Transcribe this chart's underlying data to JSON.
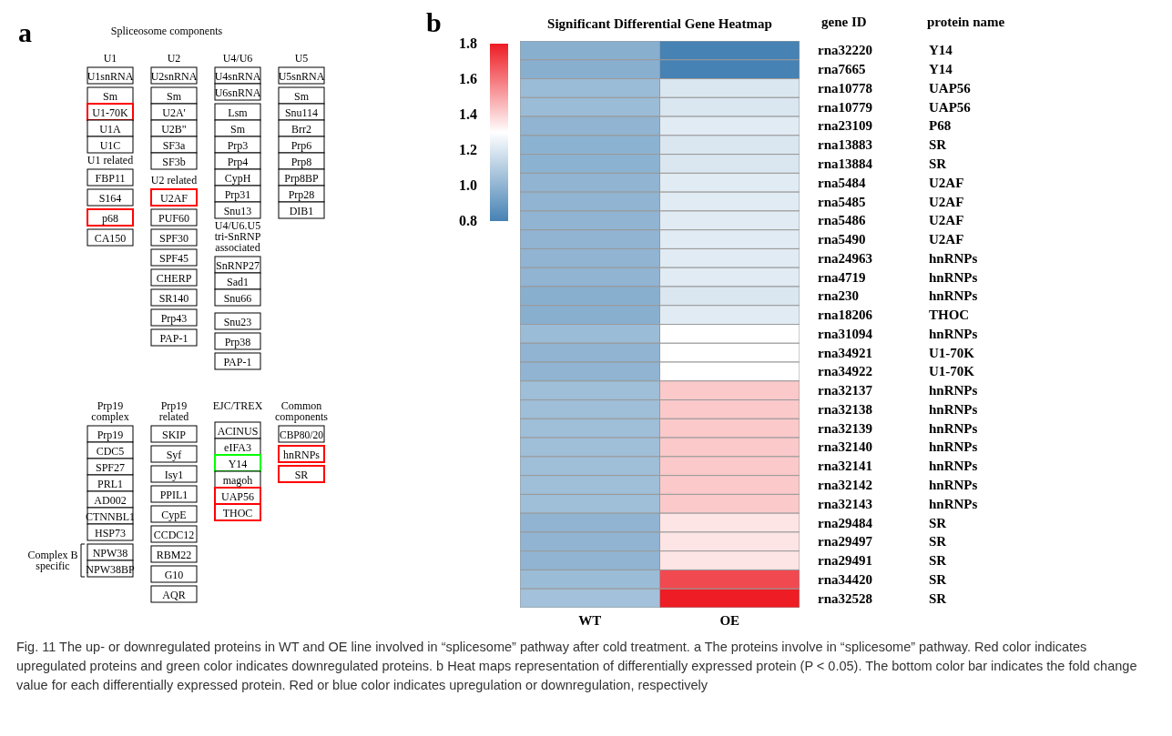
{
  "chart_data": [
    {
      "type": "other",
      "subtitle": "a",
      "title": "Spliceosome components",
      "annotations": [
        "U1",
        "U1snRNA",
        "Sm",
        "U1-70K",
        "U1A",
        "U1C",
        "U1 related",
        "FBP11",
        "S164",
        "p68",
        "CA150",
        "U2",
        "U2snRNA",
        "Sm",
        "U2A'",
        "U2B\"",
        "SF3a",
        "SF3b",
        "U2 related",
        "U2AF",
        "PUF60",
        "SPF30",
        "SPF45",
        "CHERP",
        "SR140",
        "Prp43",
        "PAP-1",
        "U4/U6",
        "U4snRNA",
        "U6snRNA",
        "Lsm",
        "Sm",
        "Prp3",
        "Prp4",
        "CypH",
        "Prp31",
        "Snu13",
        "U4/U6.U5 tri-SnRNP associated",
        "SnRNP27",
        "Sad1",
        "Snu66",
        "Snu23",
        "Prp38",
        "PAP-1",
        "U5",
        "U5snRNA",
        "Sm",
        "Snu114",
        "Brr2",
        "Prp6",
        "Prp8",
        "Prp8BP",
        "Prp28",
        "DIB1",
        "Prp19 complex",
        "Prp19",
        "CDC5",
        "SPF27",
        "PRL1",
        "AD002",
        "CTNNBL1",
        "HSP73",
        "NPW38",
        "NPW38BP",
        "Complex B specific",
        "Prp19 related",
        "SKIP",
        "Syf",
        "Isy1",
        "PPIL1",
        "CypE",
        "CCDC12",
        "RBM22",
        "G10",
        "AQR",
        "EJC/TREX",
        "ACINUS",
        "eIFA3",
        "Y14",
        "magoh",
        "UAP56",
        "THOC",
        "Common components",
        "CBP80/20",
        "hnRNPs",
        "SR"
      ],
      "colors": [
        null,
        "#000000",
        "#000000",
        "#ff0000",
        "#000000",
        "#000000",
        null,
        "#000000",
        "#000000",
        "#ff0000",
        "#000000",
        null,
        "#000000",
        "#000000",
        "#000000",
        "#000000",
        "#000000",
        "#000000",
        null,
        "#ff0000",
        "#000000",
        "#000000",
        "#000000",
        "#000000",
        "#000000",
        "#000000",
        "#000000",
        null,
        "#000000",
        "#000000",
        "#000000",
        "#000000",
        "#000000",
        "#000000",
        "#000000",
        "#000000",
        "#000000",
        null,
        "#000000",
        "#000000",
        "#000000",
        "#000000",
        "#000000",
        "#000000",
        null,
        "#000000",
        "#000000",
        "#000000",
        "#000000",
        "#000000",
        "#000000",
        "#000000",
        "#000000",
        "#000000",
        null,
        "#000000",
        "#000000",
        "#000000",
        "#000000",
        "#000000",
        "#000000",
        "#000000",
        "#000000",
        "#000000",
        null,
        null,
        "#000000",
        "#000000",
        "#000000",
        "#000000",
        "#000000",
        "#000000",
        "#000000",
        "#000000",
        "#000000",
        null,
        "#000000",
        "#000000",
        "#00ff00",
        "#000000",
        "#ff0000",
        "#ff0000",
        null,
        "#000000",
        "#ff0000",
        "#ff0000"
      ]
    },
    {
      "type": "heatmap",
      "subtitle": "b",
      "title": "Significant Differential Gene Heatmap",
      "ylabel": "gene ID",
      "y2label": "protein name",
      "categories": [
        "WT",
        "OE"
      ],
      "y_categories": [
        "rna32220",
        "rna7665",
        "rna10778",
        "rna10779",
        "rna23109",
        "rna13883",
        "rna13884",
        "rna5484",
        "rna5485",
        "rna5486",
        "rna5490",
        "rna24963",
        "rna4719",
        "rna230",
        "rna18206",
        "rna31094",
        "rna34921",
        "rna34922",
        "rna32137",
        "rna32138",
        "rna32139",
        "rna32140",
        "rna32141",
        "rna32142",
        "rna32143",
        "rna29484",
        "rna29497",
        "rna29491",
        "rna34420",
        "rna32528"
      ],
      "y2_categories": [
        "Y14",
        "Y14",
        "UAP56",
        "UAP56",
        "P68",
        "SR",
        "SR",
        "U2AF",
        "U2AF",
        "U2AF",
        "U2AF",
        "hnRNPs",
        "hnRNPs",
        "hnRNPs",
        "THOC",
        "hnRNPs",
        "U1-70K",
        "U1-70K",
        "hnRNPs",
        "hnRNPs",
        "hnRNPs",
        "hnRNPs",
        "hnRNPs",
        "hnRNPs",
        "hnRNPs",
        "SR",
        "SR",
        "SR",
        "SR",
        "SR"
      ],
      "cells": [
        [
          0.98,
          0.8
        ],
        [
          0.98,
          0.8
        ],
        [
          1.03,
          1.2
        ],
        [
          1.03,
          1.2
        ],
        [
          1.0,
          1.22
        ],
        [
          0.99,
          1.2
        ],
        [
          0.99,
          1.2
        ],
        [
          1.0,
          1.22
        ],
        [
          1.0,
          1.22
        ],
        [
          1.0,
          1.22
        ],
        [
          1.0,
          1.22
        ],
        [
          1.0,
          1.22
        ],
        [
          1.0,
          1.22
        ],
        [
          0.98,
          1.2
        ],
        [
          0.98,
          1.22
        ],
        [
          1.03,
          1.3
        ],
        [
          1.0,
          1.3
        ],
        [
          1.0,
          1.3
        ],
        [
          1.04,
          1.42
        ],
        [
          1.04,
          1.42
        ],
        [
          1.04,
          1.42
        ],
        [
          1.04,
          1.42
        ],
        [
          1.04,
          1.42
        ],
        [
          1.04,
          1.42
        ],
        [
          1.04,
          1.42
        ],
        [
          1.0,
          1.36
        ],
        [
          1.0,
          1.36
        ],
        [
          1.0,
          1.36
        ],
        [
          1.03,
          1.7
        ],
        [
          1.05,
          1.8
        ]
      ],
      "clim": [
        0.8,
        1.8
      ],
      "cticks": [
        0.8,
        {
          "value": 1,
          "label": "1.0"
        },
        1.2,
        1.4,
        1.6,
        1.8
      ],
      "annotations": [
        "Fig. 11 The up- or downregulated proteins in WT and OE line involved in “splicesome” pathway after cold treatment. a The proteins involve in “splicesome” pathway. Red color indicates upregulated proteins and green color indicates downregulated proteins. b Heat maps representation of differentially expressed protein (P < 0.05). The bottom color bar indicates the fold change value for each differentially expressed protein. Red or blue color indicates upregulation or downregulation, respectively"
      ]
    }
  ]
}
